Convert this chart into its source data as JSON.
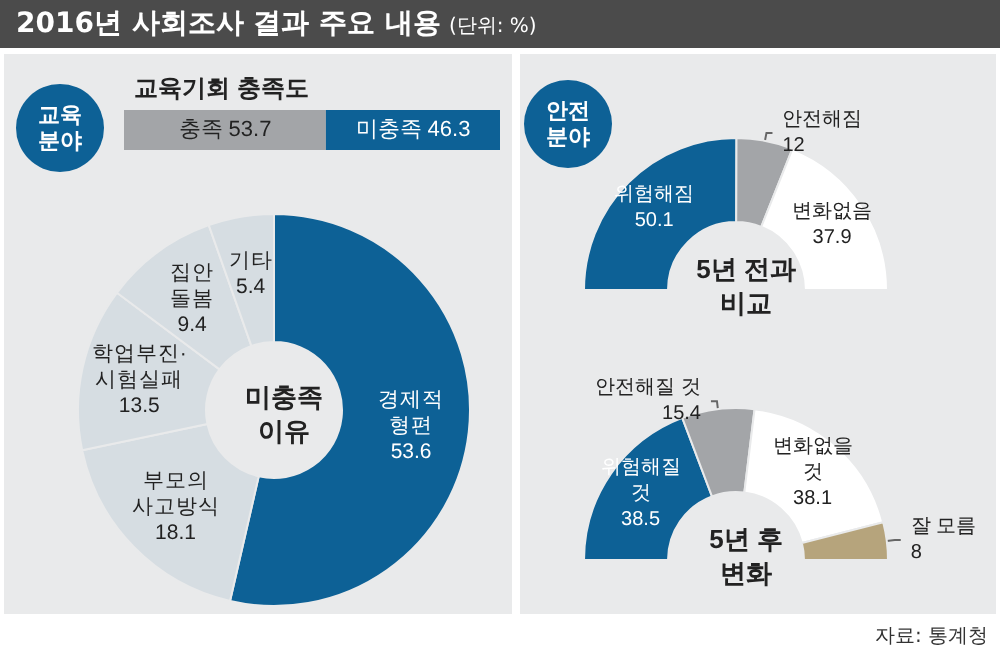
{
  "chart_data": [
    {
      "type": "other",
      "title": "2016년 사회조사 결과 주요 내용",
      "subtitle": "(단위: %)",
      "annotations": [
        "자료: 통계청"
      ]
    },
    {
      "type": "bar",
      "orientation": "horizontal",
      "stacked": true,
      "title": "교육기회 충족도",
      "annotations": [
        "교육 분야"
      ],
      "categories": [
        null
      ],
      "data_labels": true,
      "legend": false,
      "series": [
        {
          "name": "충족",
          "color": "#a3a5a8",
          "values": [
            53.7
          ]
        },
        {
          "name": "미충족",
          "color": "#0d6196",
          "values": [
            46.3
          ]
        }
      ]
    },
    {
      "type": "donut",
      "title": "미충족 이유",
      "categories": [
        "경제적 형편",
        "부모의 사고방식",
        "학업부진·시험실패",
        "집안 돌봄",
        "기타"
      ],
      "values": [
        53.6,
        18.1,
        13.5,
        9.4,
        5.4
      ],
      "colors": [
        "#0d6196",
        "#d6dde2",
        "#d6dde2",
        "#d6dde2",
        "#d6dde2"
      ],
      "data_labels": true
    },
    {
      "type": "donut",
      "title": "5년 전과 비교",
      "annotations": [
        "안전 분야"
      ],
      "categories": [
        "위험해짐",
        "안전해짐",
        "변화없음"
      ],
      "values": [
        50.1,
        12,
        37.9
      ],
      "colors": [
        "#0d6196",
        "#a3a5a8",
        "#ffffff"
      ],
      "data_labels": true
    },
    {
      "type": "donut",
      "title": "5년 후 변화",
      "categories": [
        "위험해질 것",
        "안전해질 것",
        "변화없을 것",
        "잘 모름"
      ],
      "values": [
        38.5,
        15.4,
        38.1,
        8
      ],
      "colors": [
        "#0d6196",
        "#a3a5a8",
        "#ffffff",
        "#b6a47c"
      ],
      "data_labels": true
    }
  ]
}
